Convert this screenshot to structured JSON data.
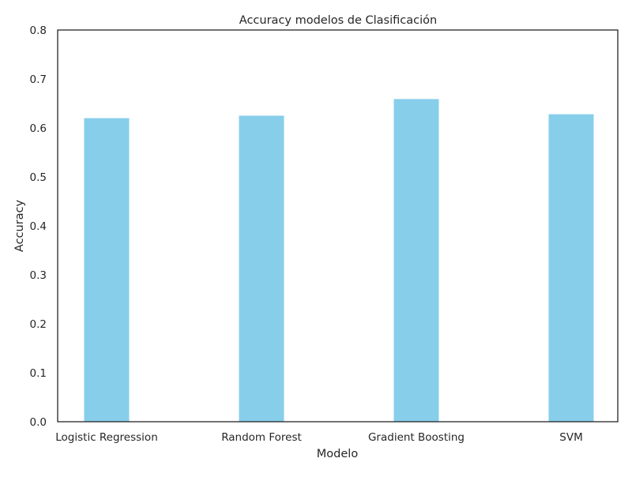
{
  "chart_data": {
    "type": "bar",
    "title": "Accuracy modelos de Clasificación",
    "xlabel": "Modelo",
    "ylabel": "Accuracy",
    "categories": [
      "Logistic Regression",
      "Random Forest",
      "Gradient Boosting",
      "SVM"
    ],
    "values": [
      0.62,
      0.625,
      0.659,
      0.628
    ],
    "ylim": [
      0,
      0.8
    ],
    "yticks": [
      "0.0",
      "0.1",
      "0.2",
      "0.3",
      "0.4",
      "0.5",
      "0.6",
      "0.7",
      "0.8"
    ],
    "grid": false,
    "legend": "none",
    "bar_color": "#87CEEB",
    "axis_color": "#262626"
  }
}
